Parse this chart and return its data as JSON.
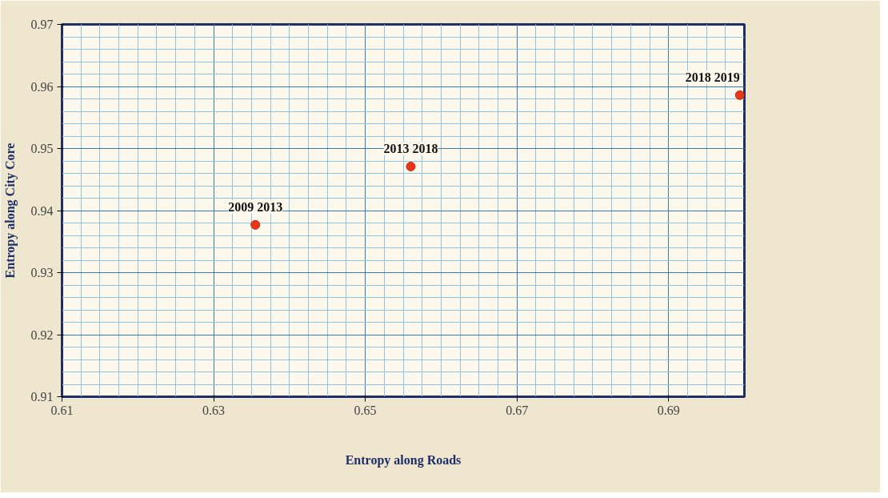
{
  "chart_data": {
    "type": "scatter",
    "xlabel": "Entropy along Roads",
    "ylabel": "Entropy along City Core",
    "x": [
      0.6355,
      0.656,
      0.6994
    ],
    "values": [
      0.9377,
      0.9471,
      0.9586
    ],
    "color": "#e8361b",
    "marker": "circle",
    "xlim": [
      0.61,
      0.7
    ],
    "xticks": [
      0.61,
      0.63,
      0.65,
      0.67,
      0.69
    ],
    "ylim": [
      0.91,
      0.97
    ],
    "yticks": [
      0.91,
      0.92,
      0.93,
      0.94,
      0.95,
      0.96,
      0.97
    ],
    "grid": true,
    "annotations": [
      {
        "text": "2009 2013",
        "x": 0.6355,
        "y": 0.9377
      },
      {
        "text": "2013 2018",
        "x": 0.656,
        "y": 0.9471
      },
      {
        "text": "2018 2019",
        "x": 0.6994,
        "y": 0.9586
      }
    ]
  }
}
